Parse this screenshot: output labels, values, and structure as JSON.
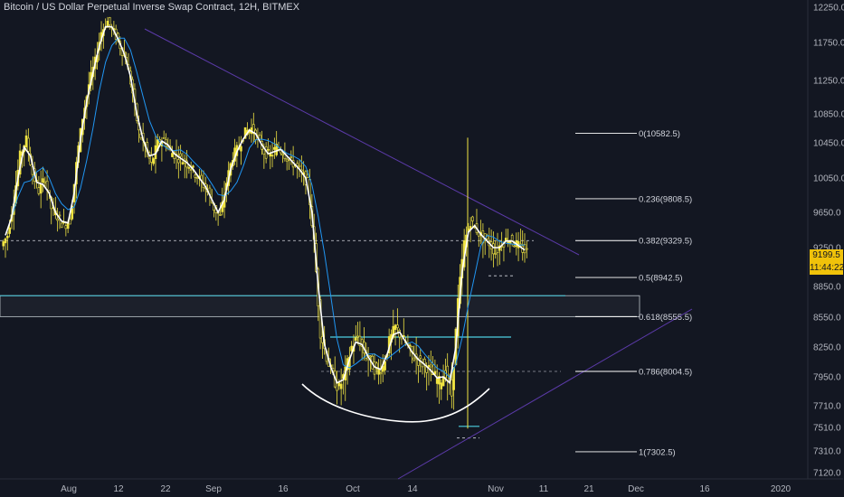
{
  "header": {
    "title": "Bitcoin / US Dollar Perpetual Inverse Swap Contract, 12H, BITMEX"
  },
  "price_badge": {
    "price": "9199.5",
    "countdown": "11:44:22",
    "color": "#f0c20a"
  },
  "colors": {
    "background": "#131722",
    "candle": "#f0e442",
    "ma_fast": "#ffffff",
    "ma_slow": "#2196f3",
    "fib_line": "#ffffff",
    "support_line": "#4dd0e1",
    "trend_line": "#5b3aa8"
  },
  "chart_data": {
    "type": "candlestick",
    "title": "Bitcoin / US Dollar Perpetual Inverse Swap Contract, 12H, BITMEX",
    "yaxis_ticks": [
      12250.0,
      11750.0,
      11250.0,
      10850.0,
      10450.0,
      10050.0,
      9650.0,
      9250.0,
      8850.0,
      8550.0,
      8250.0,
      7950.0,
      7710.0,
      7510.0,
      7310.0,
      7120.0
    ],
    "yaxis_labels": [
      "12250.0",
      "11750.0",
      "11250.0",
      "10850.0",
      "10450.0",
      "10050.0",
      "9650.0",
      "9250.0",
      "8850.0",
      "8550.0",
      "8250.0",
      "7950.0",
      "7710.0",
      "7510.0",
      "7310.0",
      "7120.0"
    ],
    "xaxis_labels": [
      "Aug",
      "12",
      "22",
      "Sep",
      "16",
      "Oct",
      "14",
      "Nov",
      "11",
      "21",
      "Dec",
      "16",
      "2020"
    ],
    "fib_levels": [
      {
        "label": "0(10582.5)",
        "value": 10582.5
      },
      {
        "label": "0.236(9808.5)",
        "value": 9808.5
      },
      {
        "label": "0.382(9329.5)",
        "value": 9329.5
      },
      {
        "label": "0.5(8942.5)",
        "value": 8942.5
      },
      {
        "label": "0.618(8555.5)",
        "value": 8555.5
      },
      {
        "label": "0.786(8004.5)",
        "value": 8004.5
      },
      {
        "label": "1(7302.5)",
        "value": 7302.5
      }
    ],
    "last_price": 9199.5,
    "close_series": [
      9390,
      9800,
      10300,
      10500,
      10100,
      9900,
      10050,
      9700,
      9600,
      9500,
      9560,
      10200,
      10800,
      11200,
      11500,
      11900,
      12050,
      11900,
      11700,
      11500,
      11100,
      10600,
      10400,
      10200,
      10450,
      10500,
      10350,
      10300,
      10250,
      10200,
      10100,
      10000,
      9900,
      9700,
      9600,
      10000,
      10300,
      10400,
      10600,
      10650,
      10500,
      10350,
      10300,
      10400,
      10350,
      10250,
      10200,
      10100,
      10000,
      9300,
      8400,
      8150,
      7950,
      7850,
      8000,
      8250,
      8350,
      8200,
      8100,
      8000,
      8050,
      8300,
      8450,
      8350,
      8250,
      8150,
      8100,
      8050,
      7980,
      7900,
      8000,
      7800,
      8700,
      9300,
      9550,
      9450,
      9350,
      9300,
      9200,
      9300,
      9350,
      9300,
      9250,
      9199.5
    ]
  }
}
